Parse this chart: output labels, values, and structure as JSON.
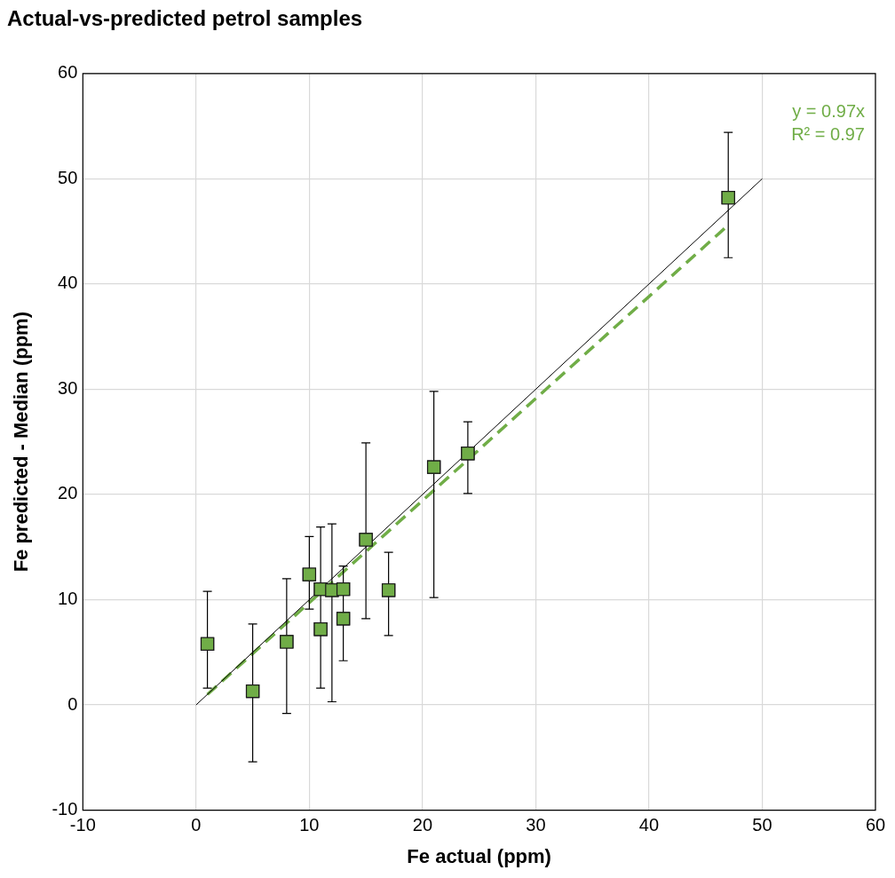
{
  "chart_data": {
    "type": "scatter",
    "title": "Actual-vs-predicted petrol samples",
    "xlabel": "Fe actual (ppm)",
    "ylabel": "Fe predicted - Median (ppm)",
    "xlim": [
      -10,
      60
    ],
    "xticks": [
      -10,
      0,
      10,
      20,
      30,
      40,
      50,
      60
    ],
    "ylim": [
      -10,
      60
    ],
    "yticks": [
      -10,
      0,
      10,
      20,
      30,
      40,
      50,
      60
    ],
    "grid": true,
    "legend": false,
    "annotations": [
      "y = 0.97x",
      "R² = 0.97"
    ],
    "series": [
      {
        "color": "#70ad47",
        "marker": "square",
        "x": [
          1,
          5,
          8,
          10,
          11,
          11,
          12,
          13,
          13,
          15,
          17,
          21,
          24,
          47
        ],
        "values": [
          5.8,
          1.3,
          6.0,
          12.4,
          7.2,
          11.0,
          10.9,
          11.0,
          8.2,
          15.7,
          10.9,
          22.6,
          23.9,
          48.2
        ],
        "errors": [
          [
            1.6,
            10.8
          ],
          [
            -5.4,
            7.7
          ],
          [
            -0.8,
            12.0
          ],
          [
            9.1,
            16.0
          ],
          [
            1.6,
            16.9
          ],
          null,
          [
            0.3,
            17.2
          ],
          null,
          [
            4.2,
            13.2
          ],
          [
            8.2,
            24.9
          ],
          [
            6.6,
            14.5
          ],
          [
            10.2,
            29.8
          ],
          [
            20.1,
            26.9
          ],
          [
            42.5,
            54.4
          ]
        ]
      },
      {
        "type": "line",
        "color": "#000000",
        "marker": "none",
        "line_style": "solid",
        "x": [
          0,
          50
        ],
        "values": [
          0,
          50
        ]
      },
      {
        "type": "line",
        "color": "#70ad47",
        "marker": "none",
        "line_style": "dashed",
        "x": [
          1,
          47
        ],
        "values": [
          1.0,
          45.6
        ]
      }
    ]
  }
}
